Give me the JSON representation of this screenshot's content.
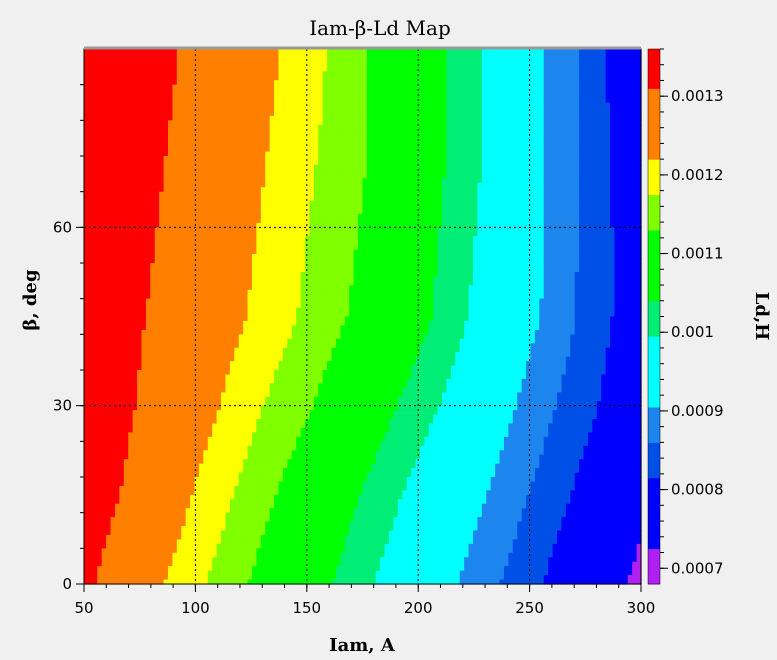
{
  "chart_data": {
    "type": "contour",
    "title": "Iam-β-Ld Map",
    "xlabel": "Iam, A",
    "ylabel": "β, deg",
    "colorbar_label": "Ld,H",
    "xlim": [
      50,
      300
    ],
    "ylim": [
      0,
      90
    ],
    "x_ticks": [
      50,
      100,
      150,
      200,
      250,
      300
    ],
    "y_ticks": [
      0,
      30,
      60
    ],
    "colorbar_ticks": [
      "0.0007",
      "0.0008",
      "0.0009",
      "0.001",
      "0.0011",
      "0.0012",
      "0.0013"
    ],
    "grid": true,
    "colorbar_levels": [
      0.00068,
      0.000725,
      0.00077,
      0.000815,
      0.00086,
      0.000905,
      0.00095,
      0.000995,
      0.00104,
      0.001085,
      0.00113,
      0.001175,
      0.00122,
      0.001265,
      0.00131,
      0.00136
    ],
    "colors": [
      "#b020f0",
      "#0000ff",
      "#0050e8",
      "#1c86ee",
      "#00ffff",
      "#00ee76",
      "#00ff00",
      "#7fff00",
      "#ffff00",
      "#ff7f00",
      "#ff0000"
    ],
    "x_values": [
      50,
      75,
      100,
      125,
      150,
      175,
      200,
      225,
      250,
      275,
      300
    ],
    "y_values": [
      0,
      15,
      30,
      45,
      60,
      75,
      90
    ],
    "z_values": [
      [
        0.00133,
        0.00125,
        0.00119,
        0.00113,
        0.00107,
        0.00101,
        0.00095,
        0.00089,
        0.00083,
        0.00077,
        0.00071
      ],
      [
        0.00136,
        0.00129,
        0.00122,
        0.00116,
        0.0011,
        0.00104,
        0.00098,
        0.00092,
        0.00086,
        0.0008,
        0.00074
      ],
      [
        0.00137,
        0.00131,
        0.00125,
        0.00119,
        0.00114,
        0.00108,
        0.00102,
        0.00096,
        0.00089,
        0.00083,
        0.00077
      ],
      [
        0.00138,
        0.00132,
        0.00127,
        0.00122,
        0.00117,
        0.00112,
        0.00106,
        0.00099,
        0.00092,
        0.00085,
        0.00078
      ],
      [
        0.00139,
        0.00133,
        0.00128,
        0.00123,
        0.00118,
        0.00113,
        0.00107,
        0.001,
        0.00093,
        0.00085,
        0.00078
      ],
      [
        0.0014,
        0.00134,
        0.00129,
        0.00124,
        0.00119,
        0.00114,
        0.00108,
        0.00101,
        0.00093,
        0.00085,
        0.00077
      ],
      [
        0.0014,
        0.00135,
        0.0013,
        0.00125,
        0.0012,
        0.00114,
        0.00108,
        0.00101,
        0.00093,
        0.00085,
        0.00076
      ]
    ]
  }
}
